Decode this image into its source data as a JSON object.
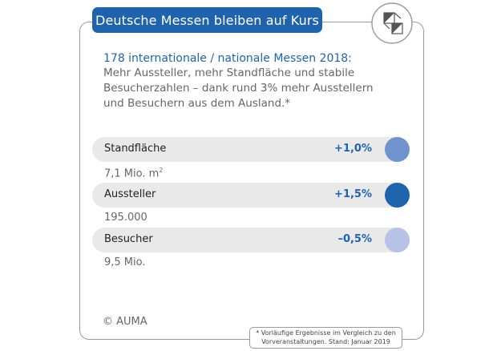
{
  "title": "Deutsche Messen bleiben auf Kurs",
  "headline": "178 internationale / nationale Messen 2018:",
  "description": "Mehr Aussteller, mehr Standfläche und stabile Besucherzahlen – dank rund 3% mehr Ausstellern und Besuchern aus dem Ausland.*",
  "chart_data": {
    "type": "table",
    "categories": [
      "Standfläche",
      "Aussteller",
      "Besucher"
    ],
    "values": [
      1.0,
      1.5,
      -0.5
    ],
    "value_labels": [
      "+1,0%",
      "+1,5%",
      "–0,5%"
    ],
    "absolute_values": [
      "7,1 Mio. m",
      "195.000",
      "9,5 Mio."
    ],
    "colors": [
      "#6f93cd",
      "#1f63ad",
      "#b7c3e6"
    ]
  },
  "units": {
    "area_superscript": "2"
  },
  "copyright": "© AUMA",
  "footnote": {
    "line1": "* Vorläufige Ergebnisse im Vergleich zu den",
    "line2": "Vorveranstaltungen. Stand: Januar 2019"
  },
  "icons": {
    "logo": "auma-logo-icon"
  }
}
